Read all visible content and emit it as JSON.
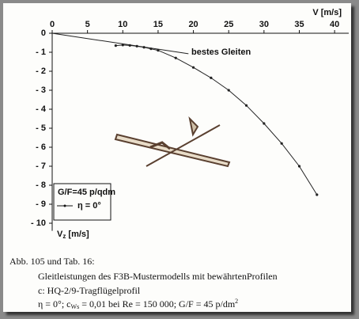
{
  "chart_data": {
    "type": "line",
    "x_label": "V [m/s]",
    "y_label_parts": [
      "V",
      "z",
      " [m/s]"
    ],
    "xlim": [
      0,
      42
    ],
    "ylim": [
      -10.4,
      0
    ],
    "xticks": [
      0,
      5,
      10,
      15,
      20,
      25,
      30,
      35,
      40
    ],
    "yticks": [
      0,
      {
        "value": -1,
        "label": "- 1"
      },
      {
        "value": -2,
        "label": "- 2"
      },
      {
        "value": -3,
        "label": "- 3"
      },
      {
        "value": -4,
        "label": "- 4"
      },
      {
        "value": -5,
        "label": "- 5"
      },
      {
        "value": -6,
        "label": "- 6"
      },
      {
        "value": -7,
        "label": "- 7"
      },
      {
        "value": -8,
        "label": "- 8"
      },
      {
        "value": -9,
        "label": "- 9"
      },
      {
        "value": -10,
        "label": "- 10"
      }
    ],
    "legend_title": "G/F=45 p/qdm",
    "series": [
      {
        "name": "η = 0°",
        "color": "#222222",
        "markers": true,
        "x": [
          9,
          10,
          11,
          12,
          13,
          14,
          15,
          17.5,
          20,
          22.5,
          25,
          27.5,
          30,
          32.5,
          35,
          37.5
        ],
        "values": [
          -0.65,
          -0.62,
          -0.64,
          -0.68,
          -0.74,
          -0.82,
          -0.9,
          -1.3,
          -1.8,
          -2.35,
          -3.0,
          -3.8,
          -4.75,
          -5.8,
          -7.0,
          -8.5
        ]
      },
      {
        "color": "#222222",
        "markers": false,
        "x": [
          0,
          19.3
        ],
        "values": [
          0,
          -1.08
        ]
      }
    ],
    "annotation": "bestes Gleiten",
    "caption_title": "Abb. 105  und  Tab.  16:",
    "caption_lines": [
      "Gleitleistungen des F3B-Mustermodells mit bewährtenProfilen",
      "c:  HQ-2/9-Tragflügelprofil"
    ],
    "caption_last_parts": [
      "η = 0°;  c",
      "Ws",
      " = 0,01  bei    Re = 150 000;  G/F = 45 p/dm",
      "2"
    ]
  }
}
